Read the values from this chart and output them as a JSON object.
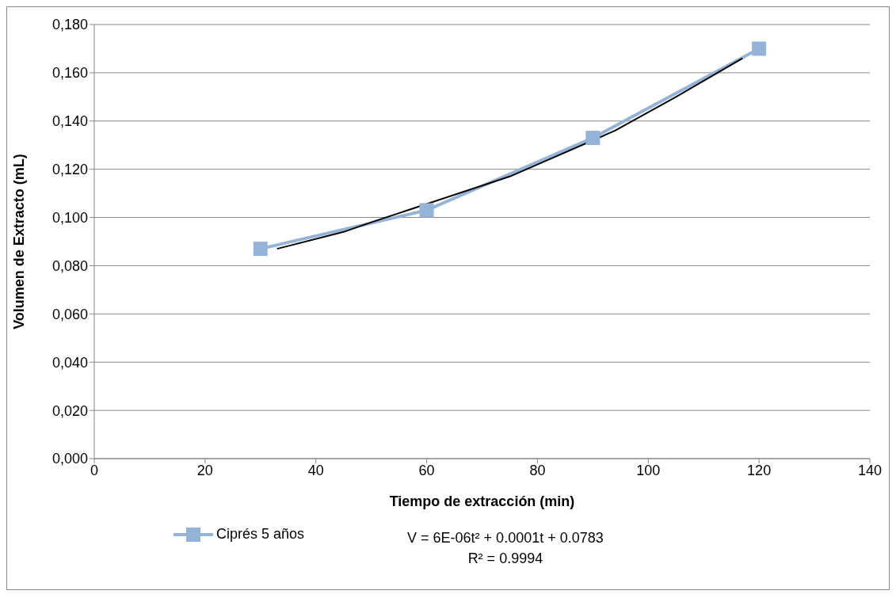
{
  "chart_data": {
    "type": "line",
    "xlabel": "Tiempo de extracción (min)",
    "ylabel": "Volumen de Extracto (mL)",
    "x": [
      30,
      60,
      90,
      120
    ],
    "series": [
      {
        "name": "Ciprés 5 años",
        "color": "#95b3d7",
        "values": [
          0.087,
          0.103,
          0.133,
          0.17
        ],
        "marker": "square"
      },
      {
        "type": "line",
        "color": "#000000",
        "x": [
          33,
          45,
          50,
          75,
          94,
          105,
          117
        ],
        "values": [
          0.087,
          0.094,
          0.098,
          0.117,
          0.136,
          0.15,
          0.166
        ],
        "marker": "none"
      }
    ],
    "xlim": [
      0,
      140
    ],
    "xticks": [
      0,
      20,
      40,
      60,
      80,
      100,
      120,
      140
    ],
    "ylim": [
      0,
      0.18
    ],
    "yticks": [
      {
        "value": 0,
        "label": "0,000"
      },
      {
        "value": 0.02,
        "label": "0,020"
      },
      {
        "value": 0.04,
        "label": "0,040"
      },
      {
        "value": 0.06,
        "label": "0,060"
      },
      {
        "value": 0.08,
        "label": "0,080"
      },
      {
        "value": 0.1,
        "label": "0,100"
      },
      {
        "value": 0.12,
        "label": "0,120"
      },
      {
        "value": 0.14,
        "label": "0,140"
      },
      {
        "value": 0.16,
        "label": "0,160"
      },
      {
        "value": 0.18,
        "label": "0,180"
      }
    ],
    "grid": "y",
    "legend": "bottom",
    "annotations": [
      "V = 6E-06t² + 0.0001t + 0.0783",
      "R² = 0.9994"
    ]
  }
}
